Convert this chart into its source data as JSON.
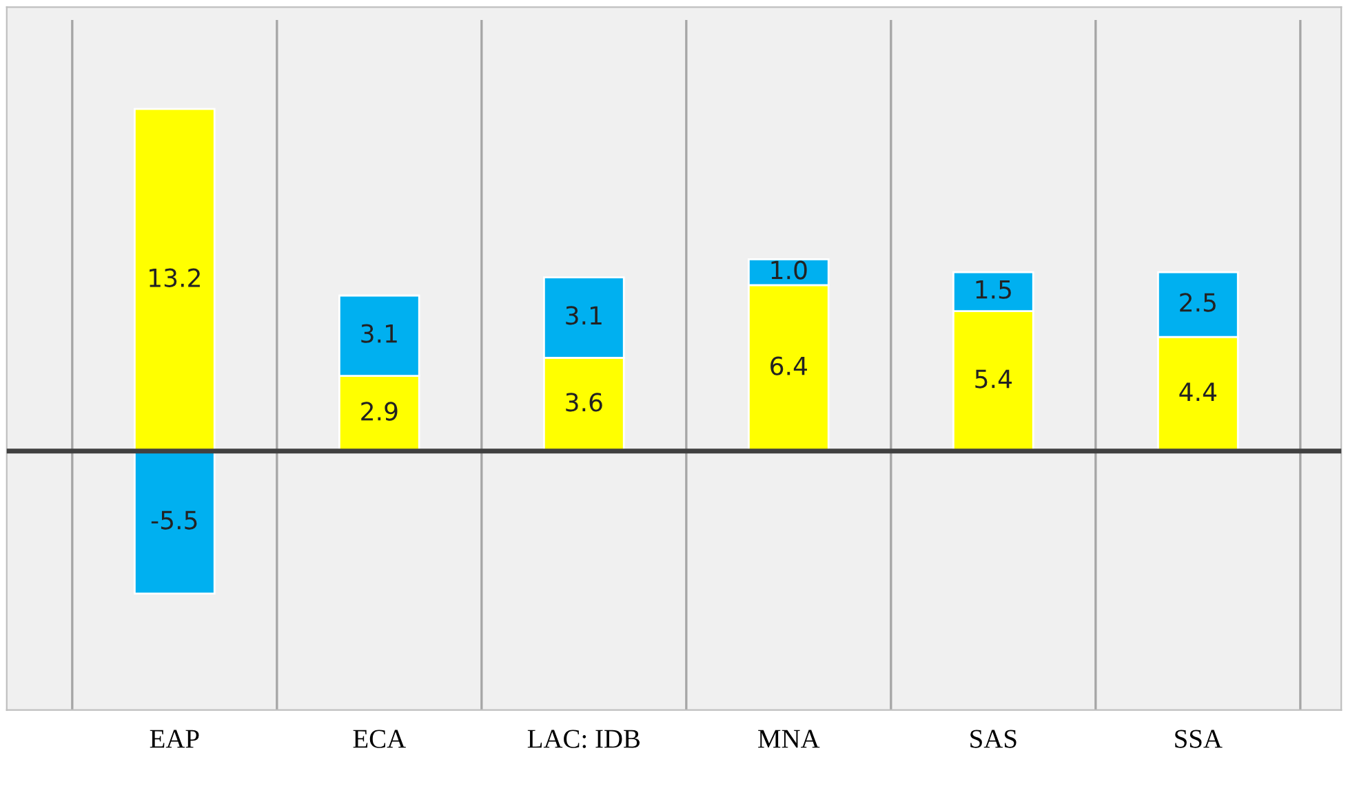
{
  "chart_data": {
    "type": "bar",
    "stacked": true,
    "data_labels": true,
    "grid": "x",
    "legend": false,
    "tick_labels": "x",
    "categories": [
      "EAP",
      "ECA",
      "LAC: IDB",
      "MNA",
      "SAS",
      "SSA"
    ],
    "series": [
      {
        "color": "#ffff00",
        "values": [
          13.2,
          2.9,
          3.6,
          6.4,
          5.4,
          4.4
        ],
        "value_labels": [
          "13.2",
          "2.9",
          "3.6",
          "6.4",
          "5.4",
          "4.4"
        ]
      },
      {
        "color": "#00b0f0",
        "values": [
          -5.5,
          3.1,
          3.1,
          1.0,
          1.5,
          2.5
        ],
        "value_labels": [
          "-5.5",
          "3.1",
          "3.1",
          "1.0",
          "1.5",
          "2.5"
        ]
      }
    ]
  }
}
